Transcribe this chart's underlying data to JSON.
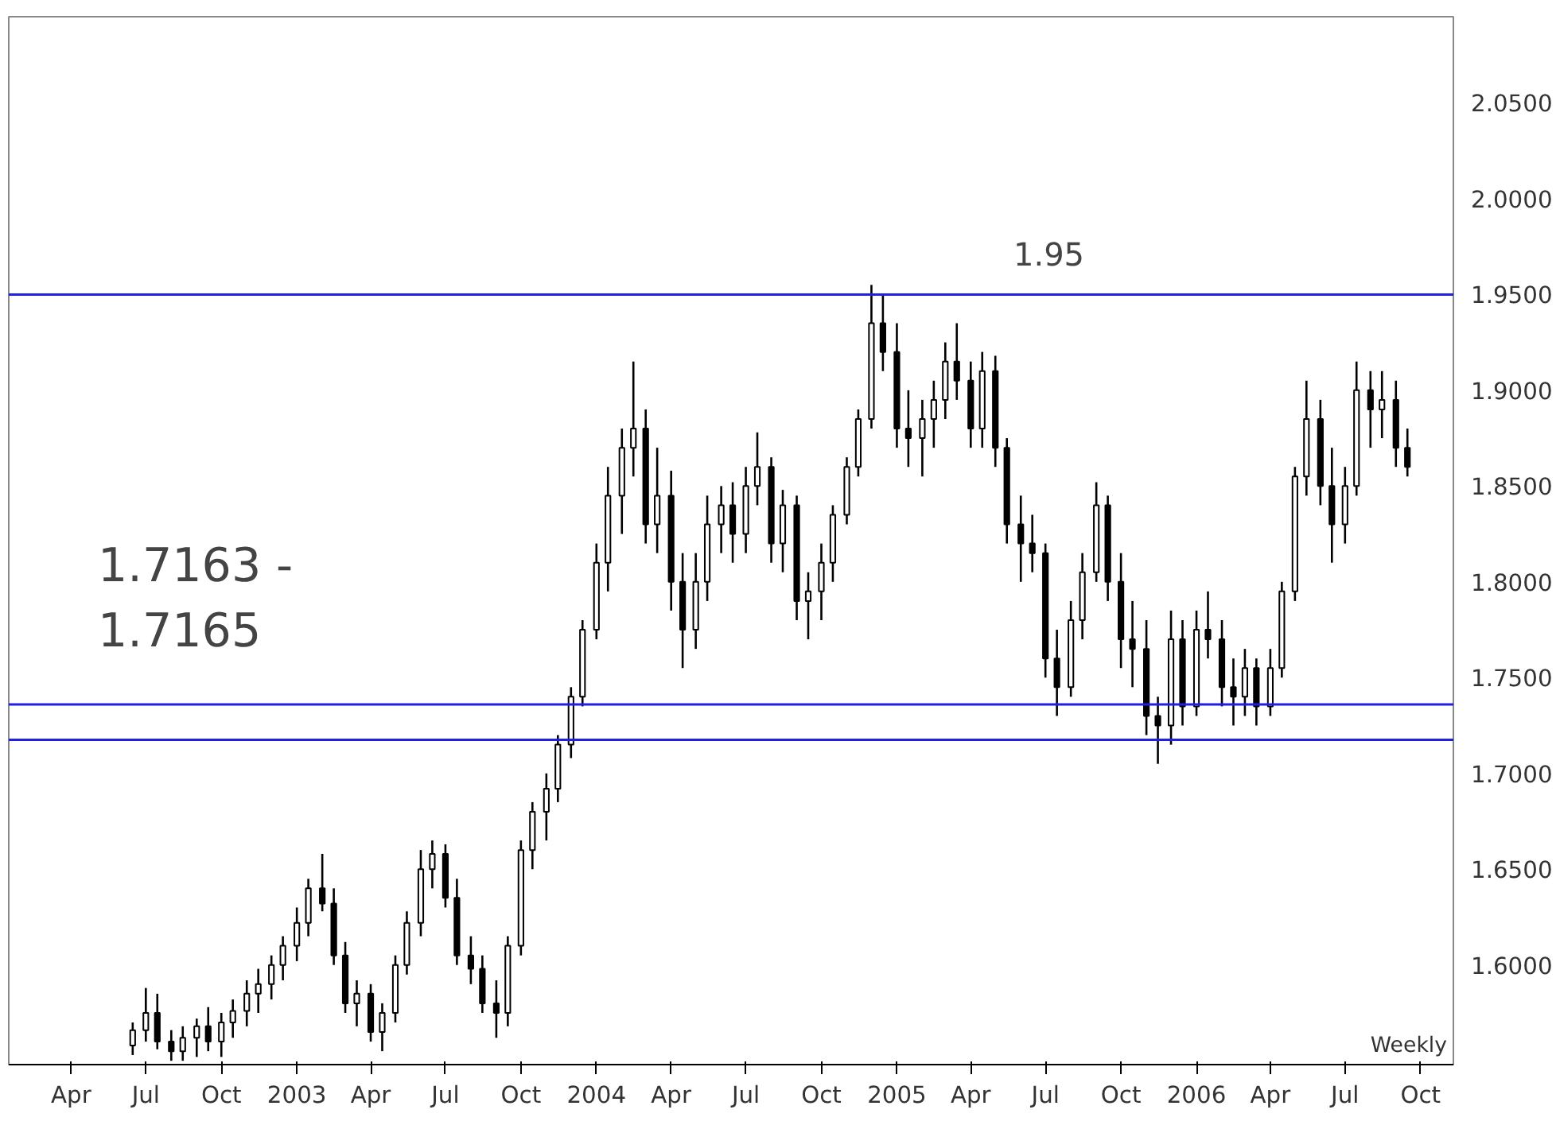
{
  "chart_data": {
    "type": "candlestick",
    "color": "#000000",
    "x": [
      "2002-06-15",
      "2002-07-01",
      "2002-07-15",
      "2002-08-01",
      "2002-08-15",
      "2002-09-01",
      "2002-09-15",
      "2002-10-01",
      "2002-10-15",
      "2002-11-01",
      "2002-11-15",
      "2002-12-01",
      "2002-12-15",
      "2003-01-01",
      "2003-01-15",
      "2003-02-01",
      "2003-02-15",
      "2003-03-01",
      "2003-03-15",
      "2003-04-01",
      "2003-04-15",
      "2003-05-01",
      "2003-05-15",
      "2003-06-01",
      "2003-06-15",
      "2003-07-01",
      "2003-07-15",
      "2003-08-01",
      "2003-08-15",
      "2003-09-01",
      "2003-09-15",
      "2003-10-01",
      "2003-10-15",
      "2003-11-01",
      "2003-11-15",
      "2003-12-01",
      "2003-12-15",
      "2004-01-01",
      "2004-01-15",
      "2004-02-01",
      "2004-02-15",
      "2004-03-01",
      "2004-03-15",
      "2004-04-01",
      "2004-04-15",
      "2004-05-01",
      "2004-05-15",
      "2004-06-01",
      "2004-06-15",
      "2004-07-01",
      "2004-07-15",
      "2004-08-01",
      "2004-08-15",
      "2004-09-01",
      "2004-09-15",
      "2004-10-01",
      "2004-10-15",
      "2004-11-01",
      "2004-11-15",
      "2004-12-01",
      "2004-12-15",
      "2005-01-01",
      "2005-01-15",
      "2005-02-01",
      "2005-02-15",
      "2005-03-01",
      "2005-03-15",
      "2005-04-01",
      "2005-04-15",
      "2005-05-01",
      "2005-05-15",
      "2005-06-01",
      "2005-06-15",
      "2005-07-01",
      "2005-07-15",
      "2005-08-01",
      "2005-08-15",
      "2005-09-01",
      "2005-09-15",
      "2005-10-01",
      "2005-10-15",
      "2005-11-01",
      "2005-11-15",
      "2005-12-01",
      "2005-12-15",
      "2006-01-01",
      "2006-01-15",
      "2006-02-01",
      "2006-02-15",
      "2006-03-01",
      "2006-03-15",
      "2006-04-01",
      "2006-04-15",
      "2006-05-01",
      "2006-05-15",
      "2006-06-01",
      "2006-06-15",
      "2006-07-01",
      "2006-07-15",
      "2006-08-01",
      "2006-08-15",
      "2006-09-01",
      "2006-09-15"
    ],
    "ohlc": [
      [
        1.558,
        1.57,
        1.553,
        1.566
      ],
      [
        1.566,
        1.588,
        1.56,
        1.575
      ],
      [
        1.575,
        1.585,
        1.556,
        1.56
      ],
      [
        1.56,
        1.566,
        1.55,
        1.555
      ],
      [
        1.555,
        1.568,
        1.55,
        1.562
      ],
      [
        1.562,
        1.572,
        1.552,
        1.568
      ],
      [
        1.568,
        1.578,
        1.555,
        1.56
      ],
      [
        1.56,
        1.575,
        1.552,
        1.57
      ],
      [
        1.57,
        1.582,
        1.562,
        1.576
      ],
      [
        1.576,
        1.592,
        1.568,
        1.585
      ],
      [
        1.585,
        1.598,
        1.575,
        1.59
      ],
      [
        1.59,
        1.605,
        1.582,
        1.6
      ],
      [
        1.6,
        1.615,
        1.592,
        1.61
      ],
      [
        1.61,
        1.63,
        1.602,
        1.622
      ],
      [
        1.622,
        1.645,
        1.615,
        1.64
      ],
      [
        1.64,
        1.658,
        1.628,
        1.632
      ],
      [
        1.632,
        1.64,
        1.6,
        1.605
      ],
      [
        1.605,
        1.612,
        1.575,
        1.58
      ],
      [
        1.58,
        1.592,
        1.568,
        1.585
      ],
      [
        1.585,
        1.59,
        1.56,
        1.565
      ],
      [
        1.565,
        1.58,
        1.555,
        1.575
      ],
      [
        1.575,
        1.605,
        1.57,
        1.6
      ],
      [
        1.6,
        1.628,
        1.595,
        1.622
      ],
      [
        1.622,
        1.66,
        1.615,
        1.65
      ],
      [
        1.65,
        1.665,
        1.64,
        1.658
      ],
      [
        1.658,
        1.663,
        1.63,
        1.635
      ],
      [
        1.635,
        1.645,
        1.6,
        1.605
      ],
      [
        1.605,
        1.615,
        1.59,
        1.598
      ],
      [
        1.598,
        1.605,
        1.575,
        1.58
      ],
      [
        1.58,
        1.592,
        1.562,
        1.575
      ],
      [
        1.575,
        1.615,
        1.568,
        1.61
      ],
      [
        1.61,
        1.665,
        1.605,
        1.66
      ],
      [
        1.66,
        1.685,
        1.65,
        1.68
      ],
      [
        1.68,
        1.7,
        1.665,
        1.692
      ],
      [
        1.692,
        1.72,
        1.685,
        1.715
      ],
      [
        1.715,
        1.745,
        1.708,
        1.74
      ],
      [
        1.74,
        1.78,
        1.735,
        1.775
      ],
      [
        1.775,
        1.82,
        1.77,
        1.81
      ],
      [
        1.81,
        1.86,
        1.795,
        1.845
      ],
      [
        1.845,
        1.88,
        1.825,
        1.87
      ],
      [
        1.87,
        1.915,
        1.855,
        1.88
      ],
      [
        1.88,
        1.89,
        1.82,
        1.83
      ],
      [
        1.83,
        1.87,
        1.815,
        1.845
      ],
      [
        1.845,
        1.858,
        1.785,
        1.8
      ],
      [
        1.8,
        1.815,
        1.755,
        1.775
      ],
      [
        1.775,
        1.815,
        1.765,
        1.8
      ],
      [
        1.8,
        1.845,
        1.79,
        1.83
      ],
      [
        1.83,
        1.85,
        1.815,
        1.84
      ],
      [
        1.84,
        1.852,
        1.81,
        1.825
      ],
      [
        1.825,
        1.86,
        1.815,
        1.85
      ],
      [
        1.85,
        1.878,
        1.84,
        1.86
      ],
      [
        1.86,
        1.865,
        1.81,
        1.82
      ],
      [
        1.82,
        1.848,
        1.805,
        1.84
      ],
      [
        1.84,
        1.845,
        1.78,
        1.79
      ],
      [
        1.79,
        1.805,
        1.77,
        1.795
      ],
      [
        1.795,
        1.82,
        1.78,
        1.81
      ],
      [
        1.81,
        1.84,
        1.8,
        1.835
      ],
      [
        1.835,
        1.865,
        1.83,
        1.86
      ],
      [
        1.86,
        1.89,
        1.855,
        1.885
      ],
      [
        1.885,
        1.955,
        1.88,
        1.935
      ],
      [
        1.935,
        1.95,
        1.91,
        1.92
      ],
      [
        1.92,
        1.935,
        1.87,
        1.88
      ],
      [
        1.88,
        1.9,
        1.86,
        1.875
      ],
      [
        1.875,
        1.895,
        1.855,
        1.885
      ],
      [
        1.885,
        1.905,
        1.87,
        1.895
      ],
      [
        1.895,
        1.925,
        1.885,
        1.915
      ],
      [
        1.915,
        1.935,
        1.895,
        1.905
      ],
      [
        1.905,
        1.915,
        1.87,
        1.88
      ],
      [
        1.88,
        1.92,
        1.87,
        1.91
      ],
      [
        1.91,
        1.918,
        1.86,
        1.87
      ],
      [
        1.87,
        1.875,
        1.82,
        1.83
      ],
      [
        1.83,
        1.845,
        1.8,
        1.82
      ],
      [
        1.82,
        1.835,
        1.805,
        1.815
      ],
      [
        1.815,
        1.82,
        1.75,
        1.76
      ],
      [
        1.76,
        1.775,
        1.73,
        1.745
      ],
      [
        1.745,
        1.79,
        1.74,
        1.78
      ],
      [
        1.78,
        1.815,
        1.77,
        1.805
      ],
      [
        1.805,
        1.852,
        1.8,
        1.84
      ],
      [
        1.84,
        1.845,
        1.79,
        1.8
      ],
      [
        1.8,
        1.815,
        1.755,
        1.77
      ],
      [
        1.77,
        1.79,
        1.745,
        1.765
      ],
      [
        1.765,
        1.78,
        1.72,
        1.73
      ],
      [
        1.73,
        1.74,
        1.705,
        1.725
      ],
      [
        1.725,
        1.785,
        1.715,
        1.77
      ],
      [
        1.77,
        1.78,
        1.725,
        1.735
      ],
      [
        1.735,
        1.785,
        1.73,
        1.775
      ],
      [
        1.775,
        1.795,
        1.76,
        1.77
      ],
      [
        1.77,
        1.78,
        1.735,
        1.745
      ],
      [
        1.745,
        1.76,
        1.725,
        1.74
      ],
      [
        1.74,
        1.765,
        1.73,
        1.755
      ],
      [
        1.755,
        1.76,
        1.725,
        1.735
      ],
      [
        1.735,
        1.765,
        1.73,
        1.755
      ],
      [
        1.755,
        1.8,
        1.75,
        1.795
      ],
      [
        1.795,
        1.86,
        1.79,
        1.855
      ],
      [
        1.855,
        1.905,
        1.845,
        1.885
      ],
      [
        1.885,
        1.895,
        1.84,
        1.85
      ],
      [
        1.85,
        1.87,
        1.81,
        1.83
      ],
      [
        1.83,
        1.86,
        1.82,
        1.85
      ],
      [
        1.85,
        1.915,
        1.845,
        1.9
      ],
      [
        1.9,
        1.91,
        1.87,
        1.89
      ],
      [
        1.89,
        1.91,
        1.875,
        1.895
      ],
      [
        1.895,
        1.905,
        1.86,
        1.87
      ],
      [
        1.87,
        1.88,
        1.855,
        1.86
      ]
    ],
    "xlim": [
      "2002-01-15",
      "2006-11-10"
    ],
    "xticks": [
      {
        "value": "2002-04",
        "label": "Apr"
      },
      {
        "value": "2002-07",
        "label": "Jul"
      },
      {
        "value": "2002-10",
        "label": "Oct"
      },
      {
        "value": "2003-01",
        "label": "2003"
      },
      {
        "value": "2003-04",
        "label": "Apr"
      },
      {
        "value": "2003-07",
        "label": "Jul"
      },
      {
        "value": "2003-10",
        "label": "Oct"
      },
      {
        "value": "2004-01",
        "label": "2004"
      },
      {
        "value": "2004-04",
        "label": "Apr"
      },
      {
        "value": "2004-07",
        "label": "Jul"
      },
      {
        "value": "2004-10",
        "label": "Oct"
      },
      {
        "value": "2005-01",
        "label": "2005"
      },
      {
        "value": "2005-04",
        "label": "Apr"
      },
      {
        "value": "2005-07",
        "label": "Jul"
      },
      {
        "value": "2005-10",
        "label": "Oct"
      },
      {
        "value": "2006-01",
        "label": "2006"
      },
      {
        "value": "2006-04",
        "label": "Apr"
      },
      {
        "value": "2006-07",
        "label": "Jul"
      },
      {
        "value": "2006-10",
        "label": "Oct"
      }
    ],
    "ylim": [
      1.548,
      2.095
    ],
    "yticks": [
      {
        "value": 1.6,
        "label": "1.6000"
      },
      {
        "value": 1.65,
        "label": "1.6500"
      },
      {
        "value": 1.7,
        "label": "1.7000"
      },
      {
        "value": 1.75,
        "label": "1.7500"
      },
      {
        "value": 1.8,
        "label": "1.8000"
      },
      {
        "value": 1.85,
        "label": "1.8500"
      },
      {
        "value": 1.9,
        "label": "1.9000"
      },
      {
        "value": 1.95,
        "label": "1.9500"
      },
      {
        "value": 2.0,
        "label": "2.0000"
      },
      {
        "value": 2.05,
        "label": "2.0500"
      }
    ],
    "ref_lines": [
      {
        "axis": "y",
        "value": 1.95,
        "label": "1.95",
        "color": "#2020e0"
      },
      {
        "axis": "y",
        "value": 1.736,
        "color": "#2020e0"
      },
      {
        "axis": "y",
        "value": 1.7175,
        "color": "#2020e0"
      }
    ],
    "annotations": [
      "1.7163 - 1.7165",
      "Weekly"
    ],
    "grid": false
  }
}
